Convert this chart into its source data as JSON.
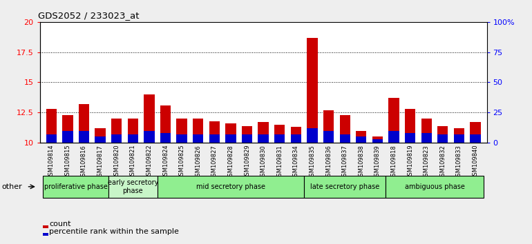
{
  "title": "GDS2052 / 233023_at",
  "samples": [
    "GSM109814",
    "GSM109815",
    "GSM109816",
    "GSM109817",
    "GSM109820",
    "GSM109821",
    "GSM109822",
    "GSM109824",
    "GSM109825",
    "GSM109826",
    "GSM109827",
    "GSM109828",
    "GSM109829",
    "GSM109830",
    "GSM109831",
    "GSM109834",
    "GSM109835",
    "GSM109836",
    "GSM109837",
    "GSM109838",
    "GSM109839",
    "GSM109818",
    "GSM109819",
    "GSM109823",
    "GSM109832",
    "GSM109833",
    "GSM109840"
  ],
  "count_values": [
    12.8,
    12.3,
    13.2,
    11.2,
    12.0,
    12.0,
    14.0,
    13.1,
    12.0,
    12.0,
    11.8,
    11.6,
    11.4,
    11.7,
    11.5,
    11.3,
    18.7,
    12.7,
    12.3,
    11.0,
    10.5,
    13.7,
    12.8,
    12.0,
    11.4,
    11.2,
    11.7
  ],
  "percentile_values_pct": [
    7,
    10,
    10,
    5,
    7,
    7,
    10,
    8,
    7,
    7,
    7,
    7,
    7,
    7,
    7,
    7,
    12,
    10,
    7,
    5,
    3,
    10,
    8,
    8,
    7,
    7,
    7
  ],
  "bar_bottom": 10.0,
  "ylim_left": [
    10.0,
    20.0
  ],
  "ylim_right": [
    0,
    100
  ],
  "yticks_left": [
    10,
    12.5,
    15,
    17.5,
    20
  ],
  "yticks_right": [
    0,
    25,
    50,
    75,
    100
  ],
  "ytick_labels_left": [
    "10",
    "12.5",
    "15",
    "17.5",
    "20"
  ],
  "ytick_labels_right": [
    "0",
    "25",
    "50",
    "75",
    "100%"
  ],
  "phases": [
    {
      "label": "proliferative phase",
      "start": 0,
      "end": 4,
      "color": "#90EE90"
    },
    {
      "label": "early secretory\nphase",
      "start": 4,
      "end": 7,
      "color": "#c8f5c8"
    },
    {
      "label": "mid secretory phase",
      "start": 7,
      "end": 16,
      "color": "#90EE90"
    },
    {
      "label": "late secretory phase",
      "start": 16,
      "end": 21,
      "color": "#90EE90"
    },
    {
      "label": "ambiguous phase",
      "start": 21,
      "end": 27,
      "color": "#90EE90"
    }
  ],
  "bar_color_red": "#CC0000",
  "bar_color_blue": "#0000CC",
  "bar_width": 0.65,
  "bg_color": "#d3d3d3",
  "plot_bg_color": "#ffffff",
  "fig_bg_color": "#eeeeee",
  "other_label": "other",
  "legend_count": "count",
  "legend_percentile": "percentile rank within the sample"
}
